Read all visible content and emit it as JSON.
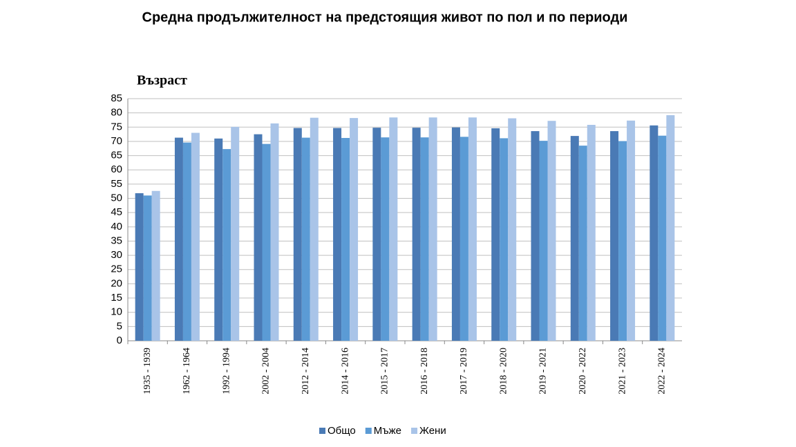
{
  "chart_data": {
    "type": "bar",
    "title": "Средна продължителност на предстоящия живот по пол и по периоди",
    "y_label": "Възраст",
    "categories": [
      "1935 - 1939",
      "1962 - 1964",
      "1992 - 1994",
      "2002 - 2004",
      "2012 - 2014",
      "2014 - 2016",
      "2015 - 2017",
      "2016 - 2018",
      "2017 - 2019",
      "2018 - 2020",
      "2019 - 2021",
      "2020 - 2022",
      "2021 - 2023",
      "2022 - 2024"
    ],
    "series": [
      {
        "name": "Общо",
        "color": "#4a7ab5",
        "values": [
          51.8,
          71.3,
          71.0,
          72.5,
          74.7,
          74.7,
          74.8,
          74.8,
          74.9,
          74.6,
          73.6,
          71.9,
          73.6,
          75.6
        ]
      },
      {
        "name": "Мъже",
        "color": "#5b9bd5",
        "values": [
          51.0,
          69.6,
          67.3,
          69.1,
          71.3,
          71.2,
          71.4,
          71.4,
          71.6,
          71.1,
          70.2,
          68.5,
          70.1,
          72.0
        ]
      },
      {
        "name": "Жени",
        "color": "#a9c4e8",
        "values": [
          52.6,
          73.0,
          75.1,
          76.3,
          78.3,
          78.2,
          78.4,
          78.4,
          78.4,
          78.1,
          77.2,
          75.8,
          77.3,
          79.2
        ]
      }
    ],
    "ylim": [
      0,
      85
    ],
    "yticks": [
      0,
      5,
      10,
      15,
      20,
      25,
      30,
      35,
      40,
      45,
      50,
      55,
      60,
      65,
      70,
      75,
      80,
      85
    ],
    "grid": true,
    "legend": "bottom"
  }
}
